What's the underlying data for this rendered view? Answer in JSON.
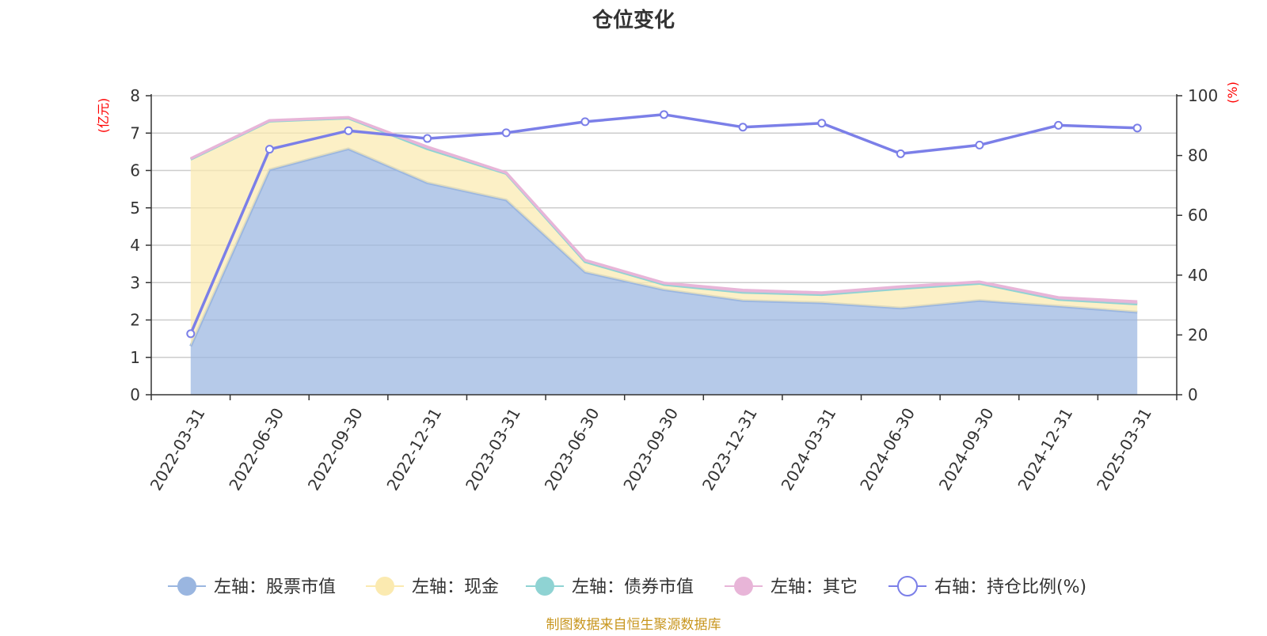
{
  "chart_data": {
    "type": "area",
    "title": "仓位变化",
    "categories": [
      "2022-03-31",
      "2022-06-30",
      "2022-09-30",
      "2022-12-31",
      "2023-03-31",
      "2023-06-30",
      "2023-09-30",
      "2023-12-31",
      "2024-03-31",
      "2024-06-30",
      "2024-09-30",
      "2024-12-31",
      "2025-03-31"
    ],
    "left_axis": {
      "unit": "(亿元)",
      "ylim": [
        0,
        8
      ],
      "ticks": [
        "0",
        "1",
        "2",
        "3",
        "4",
        "5",
        "6",
        "7",
        "8"
      ],
      "unit_color": "#ff0000"
    },
    "right_axis": {
      "unit": "(%)",
      "ylim": [
        0,
        100
      ],
      "ticks": [
        "0",
        "20",
        "40",
        "60",
        "80",
        "100"
      ],
      "unit_color": "#ff0000"
    },
    "series": [
      {
        "name": "左轴：股票市值",
        "axis": "left",
        "kind": "stacked-area",
        "color": "#9ab6e0",
        "values": [
          1.3,
          6.02,
          6.58,
          5.67,
          5.21,
          3.28,
          2.81,
          2.52,
          2.46,
          2.32,
          2.52,
          2.37,
          2.21
        ]
      },
      {
        "name": "左轴：现金",
        "axis": "left",
        "kind": "stacked-area",
        "color": "#fbeab0",
        "values": [
          5.0,
          1.3,
          0.82,
          0.91,
          0.71,
          0.28,
          0.14,
          0.22,
          0.22,
          0.52,
          0.46,
          0.18,
          0.22
        ]
      },
      {
        "name": "左轴：债券市值",
        "axis": "left",
        "kind": "stacked-area",
        "color": "#8fd3d3",
        "values": [
          0,
          0,
          0,
          0,
          0,
          0,
          0,
          0,
          0,
          0,
          0,
          0,
          0
        ]
      },
      {
        "name": "左轴：其它",
        "axis": "left",
        "kind": "stacked-area",
        "color": "#e8b5d8",
        "values": [
          0.02,
          0.02,
          0.02,
          0.05,
          0.02,
          0.04,
          0.04,
          0.06,
          0.05,
          0.05,
          0.04,
          0.05,
          0.06
        ]
      },
      {
        "name": "右轴：持仓比例(%)",
        "axis": "right",
        "kind": "line",
        "color": "#7b7fe8",
        "values": [
          20.4,
          82.1,
          88.3,
          85.7,
          87.6,
          91.3,
          93.7,
          89.5,
          90.8,
          80.6,
          83.5,
          90.1,
          89.2
        ]
      }
    ],
    "legend_position": "bottom",
    "grid": true
  },
  "footer": {
    "source": "制图数据来自恒生聚源数据库"
  }
}
